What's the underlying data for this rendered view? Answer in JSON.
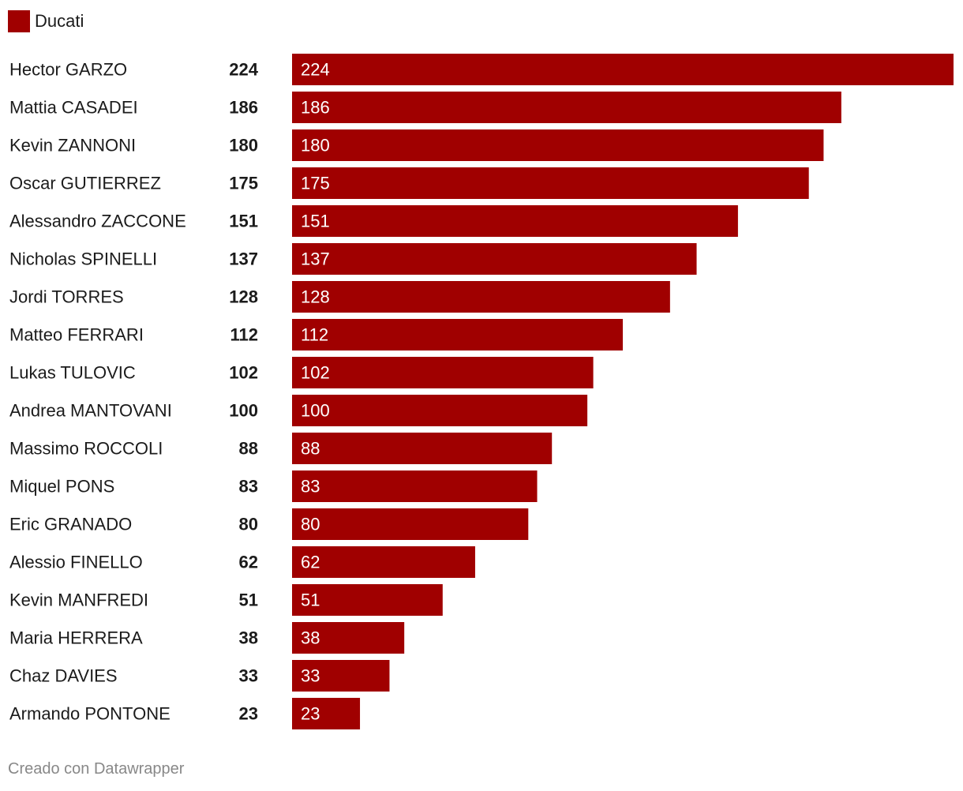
{
  "legend": {
    "label": "Ducati",
    "color": "#a00000"
  },
  "chart_data": {
    "type": "bar",
    "orientation": "horizontal",
    "series": [
      {
        "name": "Ducati",
        "color": "#a00000"
      }
    ],
    "categories": [
      "Hector GARZO",
      "Mattia CASADEI",
      "Kevin ZANNONI",
      "Oscar GUTIERREZ",
      "Alessandro ZACCONE",
      "Nicholas SPINELLI",
      "Jordi TORRES",
      "Matteo FERRARI",
      "Lukas TULOVIC",
      "Andrea MANTOVANI",
      "Massimo ROCCOLI",
      "Miquel PONS",
      "Eric GRANADO",
      "Alessio FINELLO",
      "Kevin MANFREDI",
      "Maria HERRERA",
      "Chaz DAVIES",
      "Armando PONTONE"
    ],
    "values": [
      224,
      186,
      180,
      175,
      151,
      137,
      128,
      112,
      102,
      100,
      88,
      83,
      80,
      62,
      51,
      38,
      33,
      23
    ],
    "xlim": [
      0,
      224
    ],
    "grid": false,
    "legend_position": "top-left"
  },
  "footer": {
    "credit": "Creado con Datawrapper"
  }
}
